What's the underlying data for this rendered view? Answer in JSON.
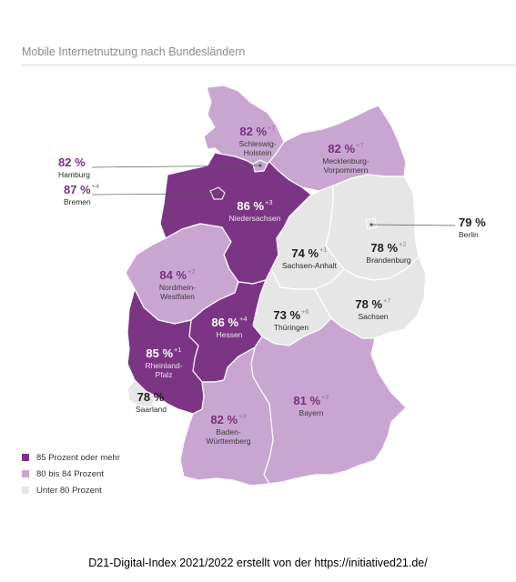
{
  "title": "Mobile Internetnutzung nach Bundesländern",
  "colors": {
    "high": "#7b3584",
    "mid": "#c9a6d2",
    "low": "#e6e6e6",
    "border": "#ffffff",
    "text_accent": "#76307e"
  },
  "legend": [
    {
      "label": "85 Prozent oder mehr",
      "color": "#7b3584"
    },
    {
      "label": "80 bis 84 Prozent",
      "color": "#c9a6d2"
    },
    {
      "label": "Unter 80 Prozent",
      "color": "#e6e6e6"
    }
  ],
  "states": {
    "sh": {
      "name": "Schleswig-Holstein",
      "pct": "82 %",
      "change": "+1",
      "class": "mid"
    },
    "mv": {
      "name": "Mecklenburg-Vorpommern",
      "pct": "82 %",
      "change": "+7",
      "class": "mid"
    },
    "hh": {
      "name": "Hamburg",
      "pct": "82 %",
      "change": "",
      "class": "mid"
    },
    "hb": {
      "name": "Bremen",
      "pct": "87 %",
      "change": "+4",
      "class": "high"
    },
    "ni": {
      "name": "Niedersachsen",
      "pct": "86 %",
      "change": "+3",
      "class": "high"
    },
    "be": {
      "name": "Berlin",
      "pct": "79 %",
      "change": "",
      "class": "low"
    },
    "bb": {
      "name": "Brandenburg",
      "pct": "78 %",
      "change": "+2",
      "class": "low"
    },
    "st": {
      "name": "Sachsen-Anhalt",
      "pct": "74 %",
      "change": "+1",
      "class": "low"
    },
    "nw": {
      "name": "Nordrhein-Westfalen",
      "pct": "84 %",
      "change": "+2",
      "class": "mid"
    },
    "sn": {
      "name": "Sachsen",
      "pct": "78 %",
      "change": "+7",
      "class": "low"
    },
    "th": {
      "name": "Thüringen",
      "pct": "73 %",
      "change": "+6",
      "class": "low"
    },
    "he": {
      "name": "Hessen",
      "pct": "86 %",
      "change": "+4",
      "class": "high"
    },
    "rp": {
      "name": "Rheinland-Pfalz",
      "pct": "85 %",
      "change": "+1",
      "class": "high"
    },
    "sl": {
      "name": "Saarland",
      "pct": "78 %",
      "change": "",
      "class": "low"
    },
    "bw": {
      "name": "Baden-Württemberg",
      "pct": "82 %",
      "change": "+3",
      "class": "mid"
    },
    "by": {
      "name": "Bayern",
      "pct": "81 %",
      "change": "+2",
      "class": "mid"
    }
  },
  "display_names": {
    "sh": [
      "Schleswig-",
      "Holstein"
    ],
    "mv": [
      "Mecklenburg-",
      "Vorpommern"
    ],
    "nw": [
      "Nordrhein-",
      "Westfalen"
    ],
    "rp": [
      "Rheinland-",
      "Pfalz"
    ],
    "bw": [
      "Baden-",
      "Württemberg"
    ]
  },
  "source": "D21-Digital-Index 2021/2022 erstellt von der https://initiatived21.de/"
}
